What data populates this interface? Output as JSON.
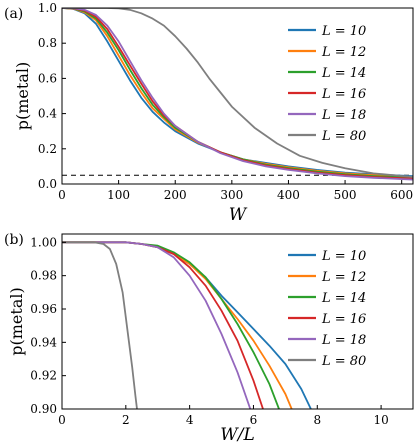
{
  "panel_a_label": "(a)",
  "panel_b_label": "(b)",
  "chart_data": [
    {
      "type": "line",
      "xlabel": "W",
      "ylabel": "p(metal)",
      "xlim": [
        0,
        620
      ],
      "ylim": [
        0.0,
        1.0
      ],
      "xticks": [
        0,
        100,
        200,
        300,
        400,
        500,
        600
      ],
      "yticks": [
        0.0,
        0.2,
        0.4,
        0.6,
        0.8,
        1.0
      ],
      "xtick_labels": [
        "0",
        "100",
        "200",
        "300",
        "400",
        "500",
        "600"
      ],
      "ytick_labels": [
        "0.0",
        "0.2",
        "0.4",
        "0.6",
        "0.8",
        "1.0"
      ],
      "legend_position": "right",
      "reference_line": {
        "y": 0.05,
        "style": "dashed",
        "color": "#000000"
      },
      "series": [
        {
          "name": "L = 10",
          "color": "#1f77b4",
          "x": [
            0,
            20,
            40,
            60,
            80,
            100,
            120,
            140,
            160,
            180,
            200,
            240,
            280,
            320,
            360,
            400,
            450,
            500,
            550,
            620
          ],
          "y": [
            1.0,
            0.995,
            0.97,
            0.91,
            0.81,
            0.7,
            0.59,
            0.49,
            0.41,
            0.35,
            0.3,
            0.23,
            0.18,
            0.14,
            0.12,
            0.1,
            0.08,
            0.065,
            0.055,
            0.045
          ]
        },
        {
          "name": "L = 12",
          "color": "#ff7f0e",
          "x": [
            0,
            20,
            40,
            60,
            80,
            100,
            120,
            140,
            160,
            180,
            200,
            240,
            280,
            320,
            360,
            400,
            450,
            500,
            550,
            620
          ],
          "y": [
            1.0,
            0.996,
            0.975,
            0.93,
            0.84,
            0.73,
            0.62,
            0.52,
            0.43,
            0.37,
            0.31,
            0.235,
            0.18,
            0.14,
            0.115,
            0.095,
            0.075,
            0.06,
            0.05,
            0.04
          ]
        },
        {
          "name": "L = 14",
          "color": "#2ca02c",
          "x": [
            0,
            20,
            40,
            60,
            80,
            100,
            120,
            140,
            160,
            180,
            200,
            240,
            280,
            320,
            360,
            400,
            450,
            500,
            550,
            620
          ],
          "y": [
            1.0,
            0.997,
            0.98,
            0.94,
            0.86,
            0.76,
            0.65,
            0.545,
            0.45,
            0.38,
            0.32,
            0.24,
            0.18,
            0.14,
            0.11,
            0.09,
            0.07,
            0.055,
            0.045,
            0.035
          ]
        },
        {
          "name": "L = 16",
          "color": "#d62728",
          "x": [
            0,
            20,
            40,
            60,
            80,
            100,
            120,
            140,
            160,
            180,
            200,
            240,
            280,
            320,
            360,
            400,
            450,
            500,
            550,
            620
          ],
          "y": [
            1.0,
            0.998,
            0.985,
            0.95,
            0.88,
            0.78,
            0.675,
            0.57,
            0.47,
            0.39,
            0.33,
            0.24,
            0.18,
            0.135,
            0.105,
            0.085,
            0.065,
            0.05,
            0.04,
            0.03
          ]
        },
        {
          "name": "L = 18",
          "color": "#9467bd",
          "x": [
            0,
            20,
            40,
            60,
            80,
            100,
            120,
            140,
            160,
            180,
            200,
            240,
            280,
            320,
            360,
            400,
            450,
            500,
            550,
            620
          ],
          "y": [
            1.0,
            0.999,
            0.99,
            0.96,
            0.9,
            0.81,
            0.7,
            0.59,
            0.49,
            0.4,
            0.33,
            0.24,
            0.175,
            0.13,
            0.1,
            0.08,
            0.06,
            0.045,
            0.035,
            0.025
          ]
        },
        {
          "name": "L = 80",
          "color": "#7f7f7f",
          "x": [
            0,
            40,
            80,
            100,
            120,
            140,
            160,
            180,
            200,
            220,
            240,
            260,
            280,
            300,
            340,
            380,
            420,
            460,
            500,
            550,
            620
          ],
          "y": [
            1.0,
            1.0,
            1.0,
            0.998,
            0.99,
            0.97,
            0.94,
            0.9,
            0.84,
            0.77,
            0.69,
            0.6,
            0.52,
            0.44,
            0.32,
            0.23,
            0.16,
            0.12,
            0.09,
            0.06,
            0.04
          ]
        }
      ]
    },
    {
      "type": "line",
      "xlabel": "W/L",
      "ylabel": "p(metal)",
      "xlim": [
        0,
        11
      ],
      "ylim": [
        0.9,
        1.005
      ],
      "xticks": [
        0,
        2,
        4,
        6,
        8,
        10
      ],
      "yticks": [
        0.9,
        0.92,
        0.94,
        0.96,
        0.98,
        1.0
      ],
      "xtick_labels": [
        "0",
        "2",
        "4",
        "6",
        "8",
        "10"
      ],
      "ytick_labels": [
        "0.90",
        "0.92",
        "0.94",
        "0.96",
        "0.98",
        "1.00"
      ],
      "legend_position": "right",
      "series": [
        {
          "name": "L = 10",
          "color": "#1f77b4",
          "x": [
            0,
            1,
            2,
            2.5,
            3,
            3.5,
            4,
            4.5,
            5,
            5.5,
            6,
            6.5,
            7,
            7.5,
            7.8
          ],
          "y": [
            1.0,
            1.0,
            1.0,
            0.999,
            0.997,
            0.993,
            0.987,
            0.979,
            0.968,
            0.958,
            0.948,
            0.938,
            0.927,
            0.912,
            0.9
          ]
        },
        {
          "name": "L = 12",
          "color": "#ff7f0e",
          "x": [
            0,
            1,
            2,
            2.5,
            3,
            3.5,
            4,
            4.5,
            5,
            5.5,
            6,
            6.5,
            7,
            7.2
          ],
          "y": [
            1.0,
            1.0,
            1.0,
            0.999,
            0.997,
            0.993,
            0.987,
            0.978,
            0.966,
            0.954,
            0.941,
            0.926,
            0.909,
            0.9
          ]
        },
        {
          "name": "L = 14",
          "color": "#2ca02c",
          "x": [
            0,
            1,
            2,
            2.5,
            3,
            3.5,
            4,
            4.5,
            5,
            5.5,
            6,
            6.5,
            6.8
          ],
          "y": [
            1.0,
            1.0,
            1.0,
            0.999,
            0.998,
            0.994,
            0.988,
            0.979,
            0.966,
            0.951,
            0.934,
            0.915,
            0.9
          ]
        },
        {
          "name": "L = 16",
          "color": "#d62728",
          "x": [
            0,
            1,
            2,
            2.5,
            3,
            3.5,
            4,
            4.5,
            5,
            5.5,
            6,
            6.3
          ],
          "y": [
            1.0,
            1.0,
            1.0,
            0.999,
            0.997,
            0.993,
            0.985,
            0.974,
            0.959,
            0.941,
            0.917,
            0.9
          ]
        },
        {
          "name": "L = 18",
          "color": "#9467bd",
          "x": [
            0,
            1,
            2,
            2.5,
            3,
            3.5,
            4,
            4.5,
            5,
            5.5,
            5.9
          ],
          "y": [
            1.0,
            1.0,
            1.0,
            0.999,
            0.997,
            0.991,
            0.98,
            0.965,
            0.945,
            0.922,
            0.9
          ]
        },
        {
          "name": "L = 80",
          "color": "#7f7f7f",
          "x": [
            0,
            0.5,
            1,
            1.3,
            1.5,
            1.7,
            1.9,
            2.0,
            2.1,
            2.2,
            2.3,
            2.35
          ],
          "y": [
            1.0,
            1.0,
            1.0,
            0.999,
            0.996,
            0.987,
            0.97,
            0.955,
            0.94,
            0.925,
            0.908,
            0.9
          ]
        }
      ]
    }
  ]
}
